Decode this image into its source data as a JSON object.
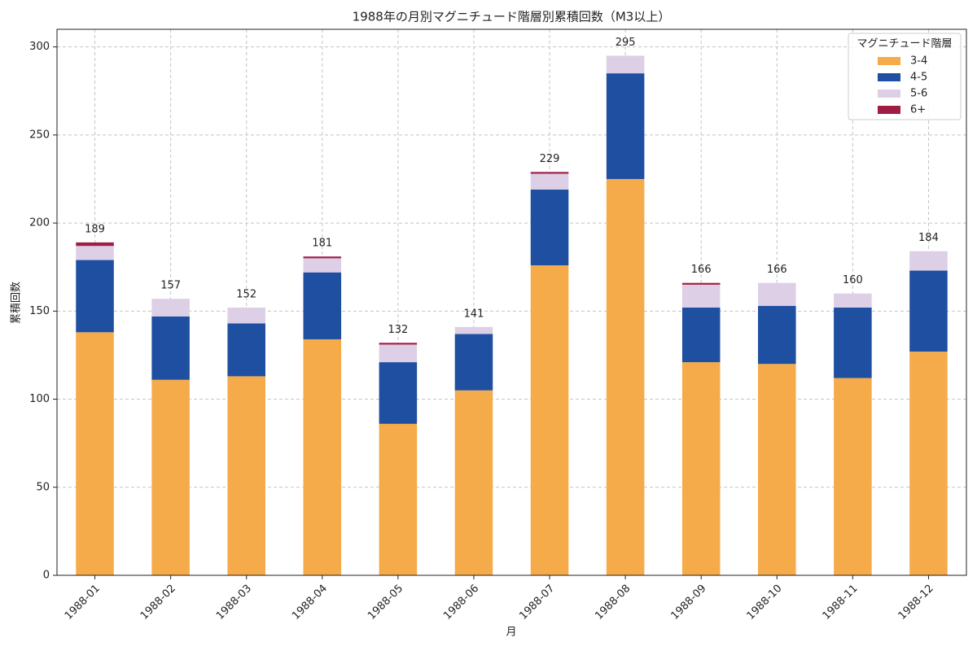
{
  "chart_data": {
    "type": "stacked_bar",
    "title": "1988年の月別マグニチュード階層別累積回数（M3以上）",
    "x_label": "月",
    "y_label": "累積回数",
    "legend_title": "マグニチュード階層",
    "legend_position": "upper-right",
    "categories": [
      "1988-01",
      "1988-02",
      "1988-03",
      "1988-04",
      "1988-05",
      "1988-06",
      "1988-07",
      "1988-08",
      "1988-09",
      "1988-10",
      "1988-11",
      "1988-12"
    ],
    "series": [
      {
        "name": "3-4",
        "color": "#f5ab4a",
        "values": [
          138,
          111,
          113,
          134,
          86,
          105,
          176,
          225,
          121,
          120,
          112,
          127
        ]
      },
      {
        "name": "4-5",
        "color": "#1f4fa0",
        "values": [
          41,
          36,
          30,
          38,
          35,
          32,
          43,
          60,
          31,
          33,
          40,
          46
        ]
      },
      {
        "name": "5-6",
        "color": "#dccfe6",
        "values": [
          8,
          10,
          9,
          8,
          10,
          4,
          9,
          10,
          13,
          13,
          8,
          11
        ]
      },
      {
        "name": "6+",
        "color": "#a01c44",
        "values": [
          2,
          0,
          0,
          1,
          1,
          0,
          1,
          0,
          1,
          0,
          0,
          0
        ]
      }
    ],
    "totals": [
      189,
      157,
      152,
      181,
      132,
      141,
      229,
      295,
      166,
      166,
      160,
      184
    ],
    "ylim": [
      0,
      310
    ],
    "yticks": [
      0,
      50,
      100,
      150,
      200,
      250,
      300
    ],
    "grid": true
  }
}
